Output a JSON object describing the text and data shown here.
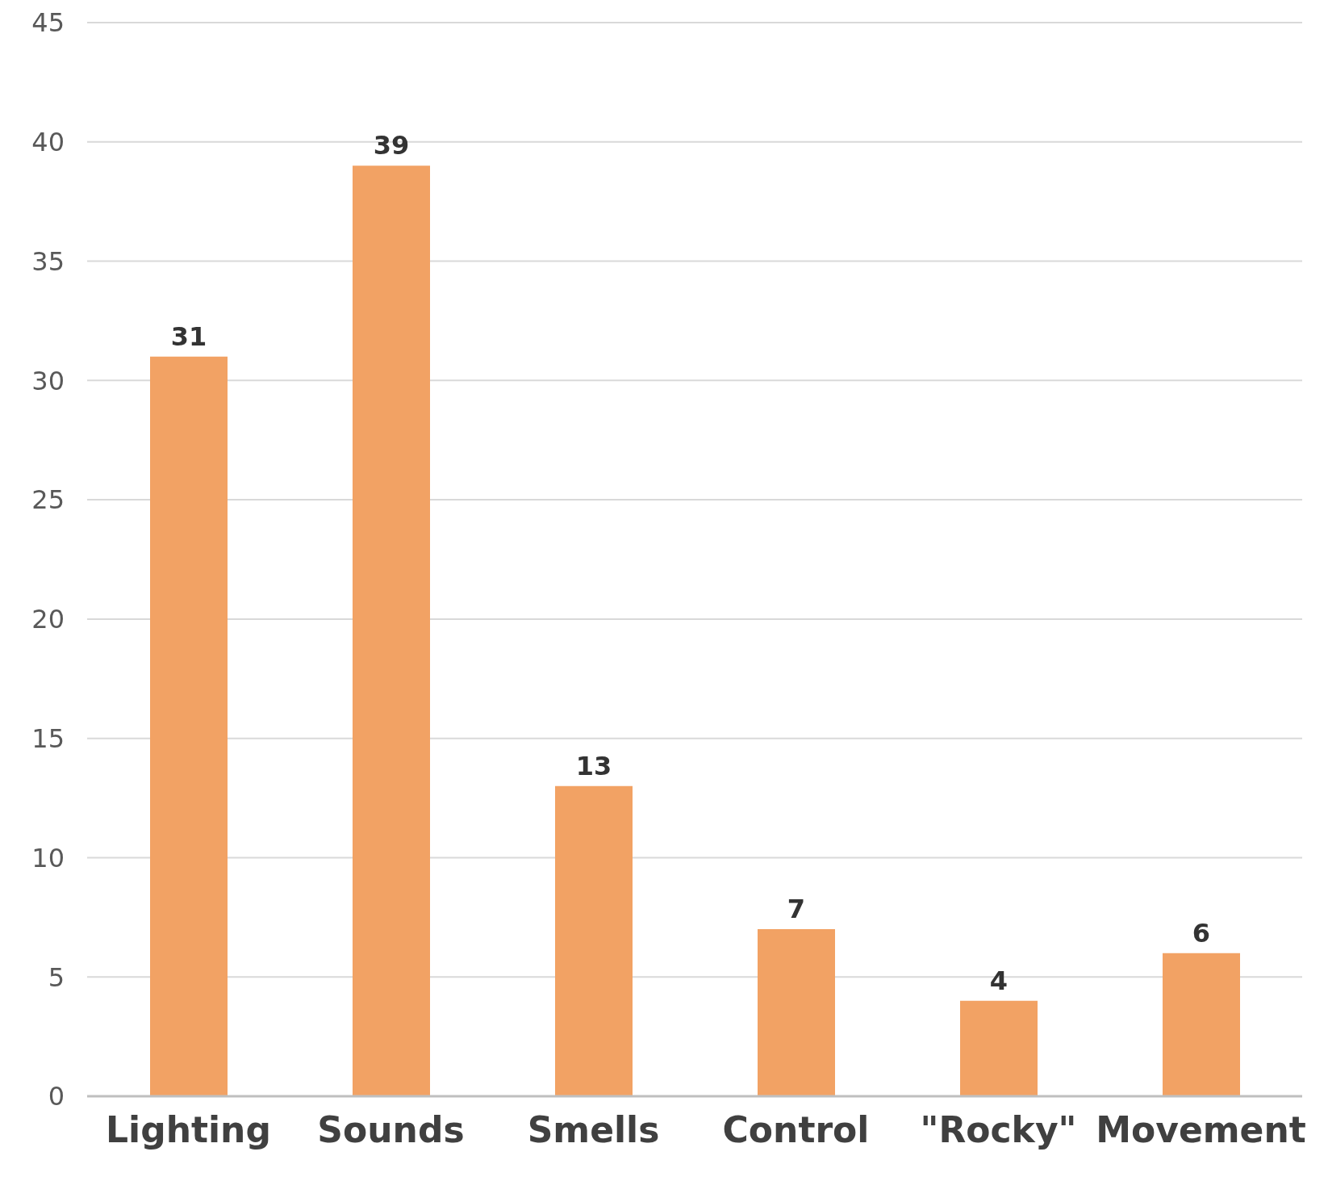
{
  "chart_data": {
    "type": "bar",
    "categories": [
      "Lighting",
      "Sounds",
      "Smells",
      "Control",
      "\"Rocky\"",
      "Movement"
    ],
    "values": [
      31,
      39,
      13,
      7,
      4,
      6
    ],
    "color": "#f2a264",
    "ylim": [
      0,
      45
    ],
    "yticks": [
      0,
      5,
      10,
      15,
      20,
      25,
      30,
      35,
      40,
      45
    ],
    "grid": "y",
    "data_labels": true
  }
}
